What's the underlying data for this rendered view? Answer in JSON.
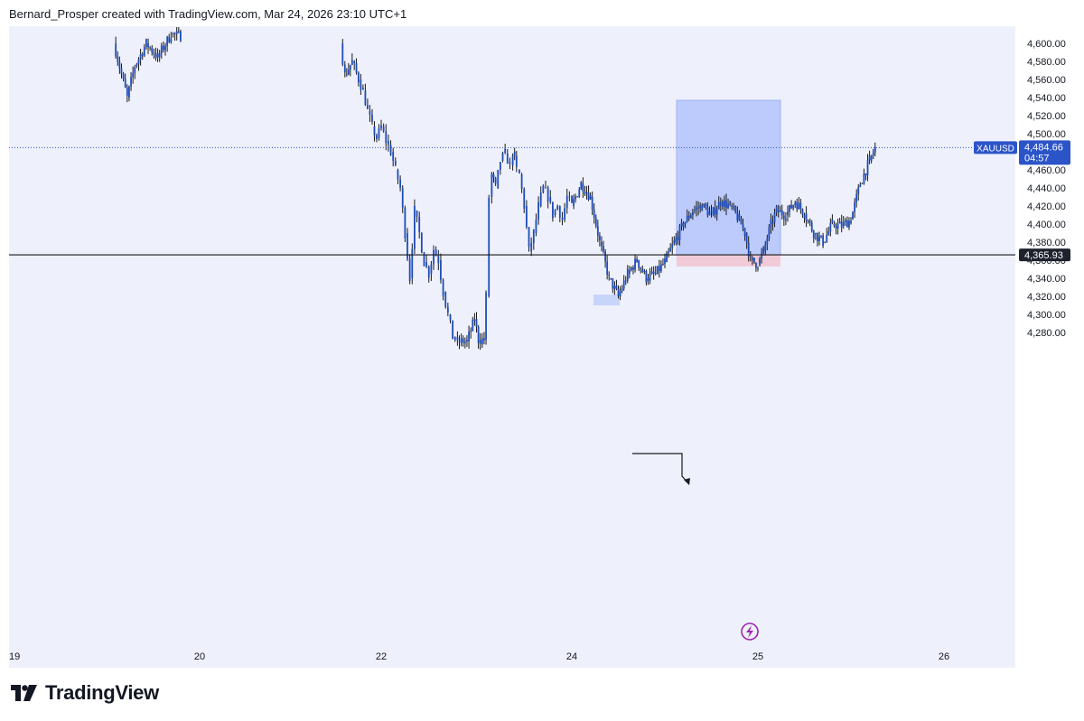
{
  "header": {
    "credit": "Bernard_Prosper created with TradingView.com, Mar 24, 2026 23:10 UTC+1"
  },
  "brand": {
    "name": "TradingView",
    "logo": "tradingview-logo-icon"
  },
  "colors": {
    "plot_bg": "#eef0fc",
    "candle": "#1f4db8",
    "wick": "#1a1a1a",
    "target_zone": "#b3c4fb",
    "stop_zone": "#f0c6d3",
    "demand_box": "#c8d5fb",
    "last_price_badge": "#2c54c9",
    "level_badge": "#1e222d",
    "flash_icon": "#9c27b0"
  },
  "chart_data": {
    "type": "candlestick",
    "symbol": "XAUUSD",
    "y_axis": {
      "ticks": [
        "4,600.00",
        "4,580.00",
        "4,560.00",
        "4,540.00",
        "4,520.00",
        "4,500.00",
        "4,480.00",
        "4,460.00",
        "4,440.00",
        "4,420.00",
        "4,400.00",
        "4,380.00",
        "4,360.00",
        "4,340.00",
        "4,320.00",
        "4,300.00",
        "4,280.00"
      ],
      "ylim": [
        4270,
        4615
      ]
    },
    "x_axis": {
      "ticks": [
        {
          "label": "19",
          "day": 19
        },
        {
          "label": "20",
          "day": 20
        },
        {
          "label": "22",
          "day": 22
        },
        {
          "label": "24",
          "day": 24
        },
        {
          "label": "25",
          "day": 25
        },
        {
          "label": "26",
          "day": 26
        }
      ]
    },
    "last_price": {
      "symbol": "XAUUSD",
      "value": 4484.66,
      "label": "4,484.66",
      "countdown": "04:57"
    },
    "horizontal_level": {
      "value": 4365.93,
      "label": "4,365.93"
    },
    "long_position": {
      "entry": 4365.93,
      "target": 4537,
      "stop": 4353
    },
    "demand_zone": {
      "top": 4322,
      "bottom": 4310
    },
    "close_path": [
      [
        19.55,
        4600
      ],
      [
        19.62,
        4540
      ],
      [
        19.66,
        4575
      ],
      [
        19.72,
        4600
      ],
      [
        19.78,
        4585
      ],
      [
        19.85,
        4610
      ],
      [
        19.9,
        4608
      ],
      [
        21.55,
        4600
      ],
      [
        21.6,
        4565
      ],
      [
        21.68,
        4580
      ],
      [
        21.75,
        4560
      ],
      [
        21.8,
        4548
      ],
      [
        21.85,
        4525
      ],
      [
        21.9,
        4508
      ],
      [
        21.95,
        4495
      ],
      [
        22.0,
        4508
      ],
      [
        22.05,
        4492
      ],
      [
        22.1,
        4480
      ],
      [
        22.15,
        4460
      ],
      [
        22.2,
        4440
      ],
      [
        22.25,
        4390
      ],
      [
        22.3,
        4340
      ],
      [
        22.35,
        4415
      ],
      [
        22.4,
        4390
      ],
      [
        22.45,
        4358
      ],
      [
        22.5,
        4345
      ],
      [
        22.55,
        4372
      ],
      [
        22.6,
        4360
      ],
      [
        22.65,
        4325
      ],
      [
        22.7,
        4300
      ],
      [
        22.75,
        4275
      ],
      [
        22.8,
        4270
      ],
      [
        22.9,
        4270
      ],
      [
        22.98,
        4295
      ],
      [
        23.02,
        4272
      ],
      [
        23.08,
        4272
      ],
      [
        23.1,
        4320
      ],
      [
        23.13,
        4430
      ],
      [
        23.16,
        4455
      ],
      [
        23.2,
        4440
      ],
      [
        23.25,
        4470
      ],
      [
        23.3,
        4478
      ],
      [
        23.35,
        4465
      ],
      [
        23.38,
        4480
      ],
      [
        23.42,
        4460
      ],
      [
        23.45,
        4455
      ],
      [
        23.5,
        4420
      ],
      [
        23.55,
        4370
      ],
      [
        23.6,
        4390
      ],
      [
        23.65,
        4420
      ],
      [
        23.7,
        4440
      ],
      [
        23.75,
        4430
      ],
      [
        23.8,
        4410
      ],
      [
        23.85,
        4420
      ],
      [
        23.9,
        4405
      ],
      [
        23.95,
        4430
      ],
      [
        24.0,
        4420
      ],
      [
        24.05,
        4445
      ],
      [
        24.1,
        4430
      ],
      [
        24.15,
        4380
      ],
      [
        24.2,
        4340
      ],
      [
        24.25,
        4320
      ],
      [
        24.3,
        4345
      ],
      [
        24.35,
        4360
      ],
      [
        24.4,
        4340
      ],
      [
        24.45,
        4345
      ],
      [
        24.5,
        4358
      ],
      [
        24.55,
        4380
      ],
      [
        24.6,
        4400
      ],
      [
        24.65,
        4415
      ],
      [
        24.7,
        4420
      ],
      [
        24.75,
        4410
      ],
      [
        24.8,
        4425
      ],
      [
        24.85,
        4420
      ],
      [
        24.9,
        4405
      ],
      [
        24.93,
        4390
      ],
      [
        24.96,
        4360
      ],
      [
        25.0,
        4355
      ],
      [
        25.03,
        4370
      ],
      [
        25.07,
        4400
      ],
      [
        25.1,
        4415
      ],
      [
        25.15,
        4410
      ],
      [
        25.2,
        4425
      ],
      [
        25.25,
        4412
      ],
      [
        25.3,
        4390
      ],
      [
        25.35,
        4380
      ],
      [
        25.4,
        4400
      ],
      [
        25.45,
        4398
      ],
      [
        25.5,
        4405
      ],
      [
        25.55,
        4445
      ],
      [
        25.6,
        4470
      ],
      [
        25.63,
        4484
      ]
    ]
  }
}
